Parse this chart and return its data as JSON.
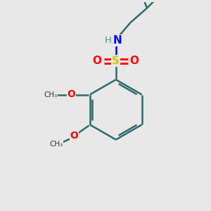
{
  "bg_color": "#e8e8e8",
  "bond_color": "#2d6b6b",
  "bond_color_dark": "#1a5050",
  "atom_colors": {
    "N": "#0000FF",
    "O": "#FF0000",
    "S": "#cccc00",
    "H": "#5a8a8a"
  },
  "bond_lw": 1.8,
  "figsize": [
    3.0,
    3.0
  ],
  "dpi": 100,
  "xlim": [
    0,
    10
  ],
  "ylim": [
    0,
    10
  ]
}
